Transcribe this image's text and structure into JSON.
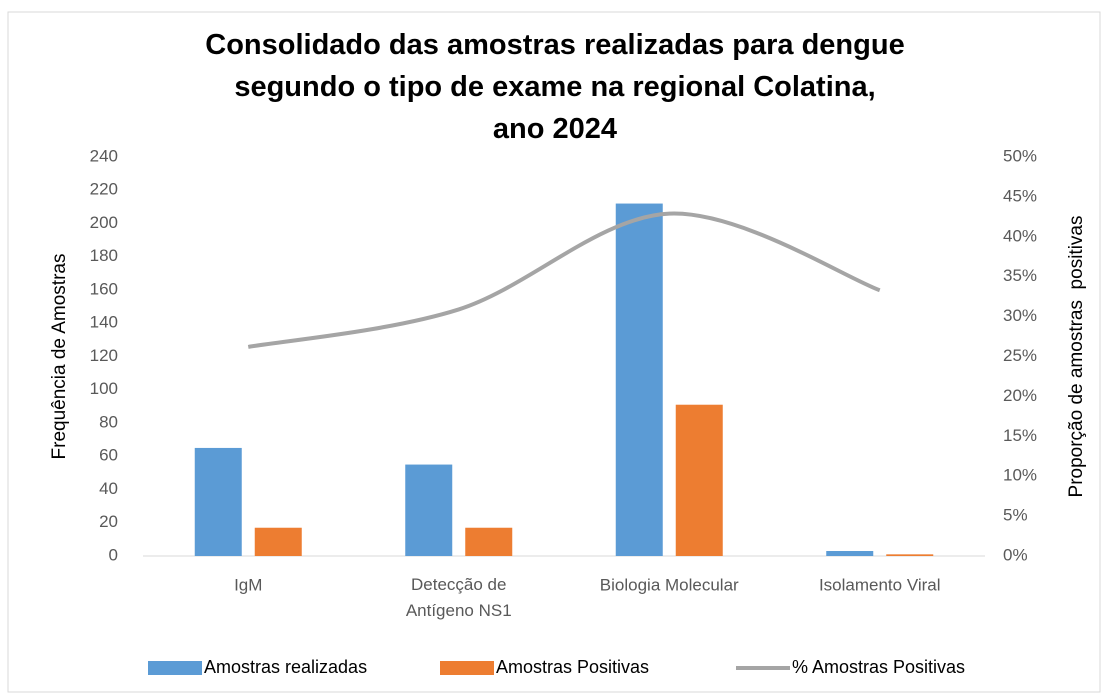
{
  "chart_data": {
    "type": "bar_line",
    "title": "Consolidado das amostras realizadas para dengue segundo o tipo de exame na regional Colatina, ano 2024",
    "ylabel": "Frequência de Amostras",
    "y2label": "Proporção de amostras  positivas",
    "categories": [
      "IgM",
      "Detecção de Antígeno NS1",
      "Biologia Molecular",
      "Isolamento Viral"
    ],
    "ylim": [
      0,
      240
    ],
    "yticks": [
      0,
      20,
      40,
      60,
      80,
      100,
      120,
      140,
      160,
      180,
      200,
      220,
      240
    ],
    "y2lim": [
      0,
      50
    ],
    "y2ticks": [
      {
        "value": 0,
        "label": "0%"
      },
      {
        "value": 5,
        "label": "5%"
      },
      {
        "value": 10,
        "label": "10%"
      },
      {
        "value": 15,
        "label": "15%"
      },
      {
        "value": 20,
        "label": "20%"
      },
      {
        "value": 25,
        "label": "25%"
      },
      {
        "value": 30,
        "label": "30%"
      },
      {
        "value": 35,
        "label": "35%"
      },
      {
        "value": 40,
        "label": "40%"
      },
      {
        "value": 45,
        "label": "45%"
      },
      {
        "value": 50,
        "label": "50%"
      }
    ],
    "legend": "bottom",
    "series": [
      {
        "name": "Amostras realizadas",
        "type": "bar",
        "color": "#5b9bd5",
        "values": [
          65,
          55,
          212,
          3
        ]
      },
      {
        "name": "Amostras Positivas",
        "type": "bar",
        "color": "#ed7d31",
        "values": [
          17,
          17,
          91,
          1
        ]
      },
      {
        "name": "% Amostras Positivas",
        "type": "line",
        "axis": "y2",
        "color": "#a5a5a5",
        "values": [
          26.2,
          30.9,
          42.9,
          33.3
        ]
      }
    ]
  }
}
